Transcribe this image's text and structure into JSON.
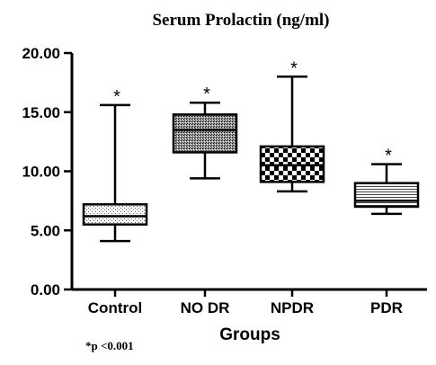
{
  "chart_data": {
    "type": "box",
    "title": "Serum Prolactin (ng/ml)",
    "xlabel": "Groups",
    "ylabel": "",
    "ylim": [
      0,
      20
    ],
    "yticks": [
      "0.00",
      "5.00",
      "10.00",
      "15.00",
      "20.00"
    ],
    "categories": [
      "Control",
      "NO DR",
      "NPDR",
      "PDR"
    ],
    "boxes": [
      {
        "category": "Control",
        "min": 4.1,
        "q1": 5.5,
        "median": 6.2,
        "q3": 7.2,
        "max": 15.6,
        "marker": "*"
      },
      {
        "category": "NO DR",
        "min": 9.4,
        "q1": 11.6,
        "median": 13.5,
        "q3": 14.8,
        "max": 15.8,
        "marker": "*"
      },
      {
        "category": "NPDR",
        "min": 8.3,
        "q1": 9.1,
        "median": 10.5,
        "q3": 12.1,
        "max": 18.0,
        "marker": "*"
      },
      {
        "category": "PDR",
        "min": 6.4,
        "q1": 7.0,
        "median": 7.5,
        "q3": 9.0,
        "max": 10.6,
        "marker": "*"
      }
    ],
    "footnote": "*p <0.001",
    "grid": false,
    "legend": "none"
  }
}
